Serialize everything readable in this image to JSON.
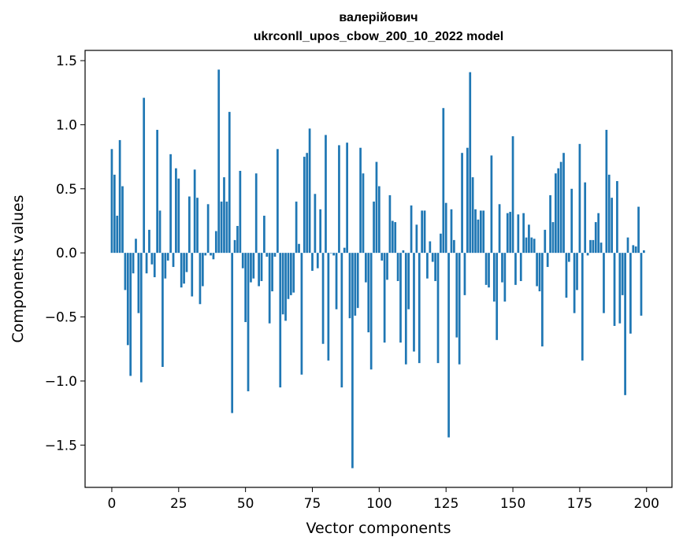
{
  "chart_data": {
    "type": "bar",
    "title_lines": [
      "валерійович",
      "ukrconll_upos_cbow_200_10_2022 model"
    ],
    "xlabel": "Vector components",
    "ylabel": "Components values",
    "xlim": [
      -10,
      209.5
    ],
    "ylim": [
      -1.83,
      1.58
    ],
    "xticks": [
      0,
      25,
      50,
      75,
      100,
      125,
      150,
      175,
      200
    ],
    "yticks": [
      -1.5,
      -1.0,
      -0.5,
      0.0,
      0.5,
      1.0,
      1.5
    ],
    "ytick_labels": [
      "−1.5",
      "−1.0",
      "−0.5",
      "0.0",
      "0.5",
      "1.0",
      "1.5"
    ],
    "bar_color": "#1f77b4",
    "grid": false,
    "values": [
      0.81,
      0.61,
      0.29,
      0.88,
      0.52,
      -0.29,
      -0.72,
      -0.96,
      -0.16,
      0.11,
      -0.47,
      -1.01,
      1.21,
      -0.16,
      0.18,
      -0.09,
      -0.19,
      0.96,
      0.33,
      -0.89,
      -0.2,
      -0.06,
      0.77,
      -0.11,
      0.66,
      0.58,
      -0.27,
      -0.24,
      -0.15,
      0.44,
      -0.34,
      0.65,
      0.43,
      -0.4,
      -0.26,
      -0.02,
      0.38,
      -0.02,
      -0.05,
      0.17,
      1.43,
      0.4,
      0.59,
      0.4,
      1.1,
      -1.25,
      0.1,
      0.21,
      0.64,
      -0.12,
      -0.54,
      -1.08,
      -0.23,
      -0.2,
      0.62,
      -0.26,
      -0.22,
      0.29,
      -0.03,
      -0.55,
      -0.3,
      -0.03,
      0.81,
      -1.05,
      -0.48,
      -0.53,
      -0.36,
      -0.33,
      -0.31,
      0.4,
      0.07,
      -0.95,
      0.75,
      0.78,
      0.97,
      -0.14,
      0.46,
      -0.12,
      0.34,
      -0.71,
      0.92,
      -0.84,
      0.0,
      -0.02,
      -0.44,
      0.84,
      -1.05,
      0.04,
      0.86,
      -0.51,
      -1.68,
      -0.49,
      -0.43,
      0.82,
      0.62,
      -0.23,
      -0.62,
      -0.91,
      0.4,
      0.71,
      0.52,
      -0.06,
      -0.7,
      -0.21,
      0.45,
      0.25,
      0.24,
      -0.22,
      -0.7,
      0.02,
      -0.87,
      -0.44,
      0.37,
      -0.77,
      0.22,
      -0.86,
      0.33,
      0.33,
      -0.2,
      0.09,
      -0.07,
      -0.22,
      -0.86,
      0.15,
      1.13,
      0.39,
      -1.44,
      0.34,
      0.1,
      -0.66,
      -0.87,
      0.78,
      -0.33,
      0.82,
      1.41,
      0.59,
      0.34,
      0.26,
      0.33,
      0.33,
      -0.25,
      -0.27,
      0.76,
      -0.38,
      -0.68,
      0.38,
      -0.23,
      -0.38,
      0.31,
      0.32,
      0.91,
      -0.25,
      0.3,
      -0.22,
      0.31,
      0.12,
      0.22,
      0.12,
      0.11,
      -0.26,
      -0.3,
      -0.73,
      0.18,
      -0.11,
      0.45,
      0.24,
      0.62,
      0.66,
      0.71,
      0.78,
      -0.35,
      -0.07,
      0.5,
      -0.47,
      -0.29,
      0.85,
      -0.84,
      0.55,
      -0.02,
      0.1,
      0.1,
      0.24,
      0.31,
      0.08,
      -0.47,
      0.96,
      0.61,
      0.43,
      -0.57,
      0.56,
      -0.55,
      -0.33,
      -1.11,
      0.12,
      -0.63,
      0.06,
      0.05,
      0.36,
      -0.49,
      0.02
    ]
  }
}
